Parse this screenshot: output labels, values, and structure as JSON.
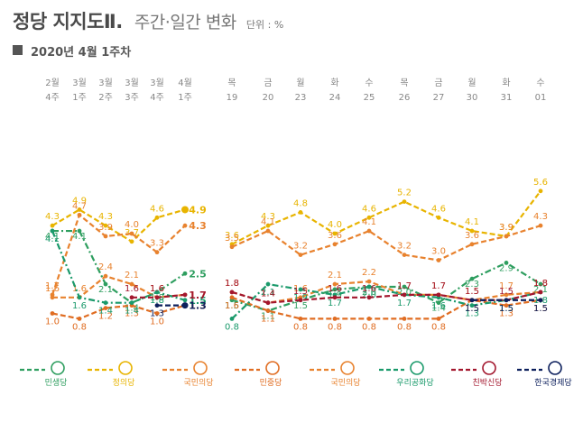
{
  "title": "정당 지지도Ⅱ.",
  "subtitle": "주간·일간 변화",
  "unit": "단위 : %",
  "period": "2020년 4월 1주차",
  "chart_data": {
    "type": "line",
    "panels": [
      {
        "name": "weekly",
        "x": [
          "2월 4주",
          "3월 1주",
          "3월 2주",
          "3월 3주",
          "3월 4주",
          "4월 1주"
        ],
        "x_top": [
          "2월",
          "3월",
          "3월",
          "3월",
          "3월",
          "4월"
        ],
        "x_bottom": [
          "4주",
          "1주",
          "2주",
          "3주",
          "4주",
          "1주"
        ]
      },
      {
        "name": "daily",
        "x_top": [
          "목",
          "금",
          "월",
          "화",
          "수",
          "목",
          "금",
          "월",
          "화",
          "수"
        ],
        "x_bottom": [
          "19",
          "20",
          "23",
          "24",
          "25",
          "26",
          "27",
          "30",
          "31",
          "01"
        ]
      }
    ],
    "series": [
      {
        "name": "민생당",
        "color": "#2e9e5f",
        "style": "dashdot",
        "weekly": [
          4.1,
          4.1,
          2.1,
          1.4,
          1.8,
          2.5
        ],
        "daily": [
          1.5,
          1.1,
          1.5,
          1.9,
          2.0,
          2.0,
          1.4,
          2.3,
          2.9,
          2.1
        ]
      },
      {
        "name": "정의당",
        "color": "#e8b400",
        "style": "dashed",
        "weekly": [
          4.3,
          4.9,
          4.3,
          3.7,
          4.6,
          4.9
        ],
        "daily": [
          3.6,
          4.3,
          4.8,
          4.0,
          4.6,
          5.2,
          4.6,
          4.1,
          3.9,
          5.6
        ]
      },
      {
        "name": "국민의당",
        "color": "#e8822e",
        "style": "dashed",
        "weekly": [
          1.7,
          4.7,
          3.9,
          4.0,
          3.3,
          4.3
        ],
        "daily": [
          3.5,
          4.1,
          3.2,
          3.6,
          4.1,
          3.2,
          3.0,
          3.6,
          3.9,
          4.3
        ]
      },
      {
        "name": "민중당",
        "color": "#e06d22",
        "style": "dashed",
        "weekly": [
          1.0,
          0.8,
          1.2,
          1.3,
          1.0,
          1.3
        ],
        "daily": [
          1.6,
          1.1,
          0.8,
          0.8,
          0.8,
          0.8,
          0.8,
          1.5,
          1.3,
          1.5
        ]
      },
      {
        "name": "국민의당",
        "color": "#e8822e",
        "style": "dashed",
        "weekly": [
          1.6,
          1.6,
          2.4,
          2.1,
          1.6,
          1.7
        ],
        "daily": [
          1.8,
          1.4,
          1.6,
          2.1,
          2.2,
          1.7,
          1.7,
          1.5,
          1.7,
          1.8
        ]
      },
      {
        "name": "우리공화당",
        "color": "#1a9a6b",
        "style": "dashdot",
        "weekly": [
          4.1,
          1.6,
          1.4,
          1.4,
          1.8,
          1.5
        ],
        "daily": [
          0.8,
          2.1,
          1.9,
          1.7,
          2.0,
          1.7,
          1.6,
          1.3,
          1.5,
          1.8
        ]
      },
      {
        "name": "친박신당",
        "color": "#a3172e",
        "style": "dashed",
        "weekly": [
          null,
          null,
          null,
          1.6,
          1.6,
          1.7
        ],
        "daily": [
          1.8,
          1.4,
          1.5,
          1.6,
          1.6,
          1.7,
          1.7,
          1.5,
          1.5,
          1.8
        ]
      },
      {
        "name": "한국경제당",
        "color": "#0c1f5c",
        "style": "dashed",
        "weekly": [
          null,
          null,
          null,
          null,
          1.3,
          1.3
        ],
        "daily": [
          null,
          null,
          null,
          null,
          null,
          null,
          null,
          1.5,
          1.5,
          1.5
        ]
      }
    ],
    "legend": [
      {
        "name": "민생당",
        "color": "#2e9e5f",
        "icon": "minsaeng-logo-icon"
      },
      {
        "name": "정의당",
        "color": "#e8b400",
        "icon": "justice-logo-icon"
      },
      {
        "name": "국민의당",
        "color": "#e8822e",
        "icon": "peoples-logo-icon"
      },
      {
        "name": "민중당",
        "color": "#e06d22",
        "icon": "minjung-logo-icon"
      },
      {
        "name": "국민의당",
        "color": "#e8822e",
        "icon": "peoples-logo-icon"
      },
      {
        "name": "우리공화당",
        "color": "#1a9a6b",
        "icon": "our-republican-logo-icon"
      },
      {
        "name": "친박신당",
        "color": "#a3172e",
        "icon": "pro-park-logo-icon"
      },
      {
        "name": "한국경제당",
        "color": "#0c1f5c",
        "icon": "korean-economy-logo-icon"
      }
    ],
    "grid": false,
    "legend_position": "bottom"
  }
}
